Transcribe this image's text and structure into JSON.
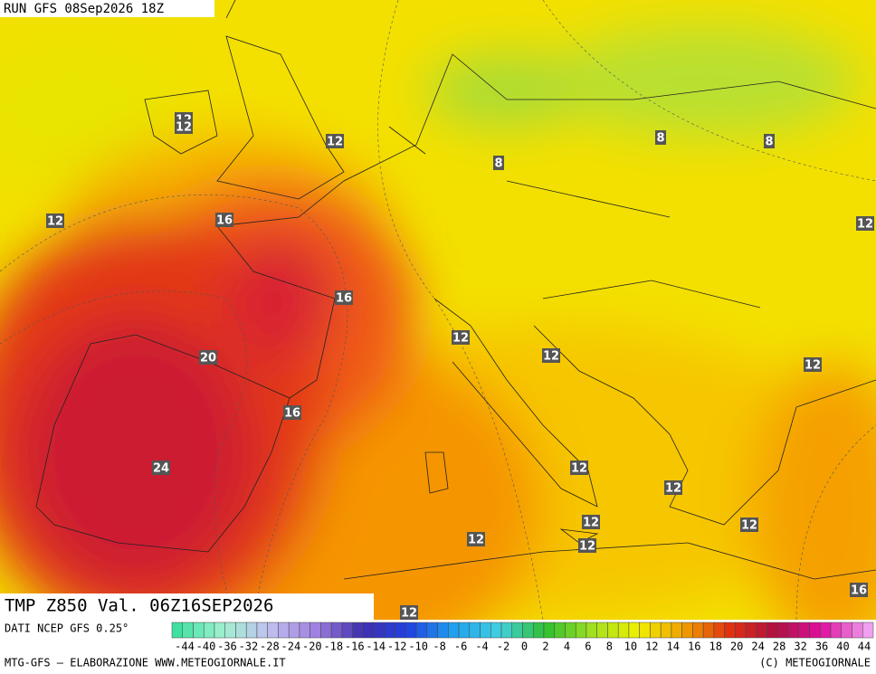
{
  "header": {
    "run": "RUN GFS 08Sep2026 18Z"
  },
  "map": {
    "field": "TMP  Z850  Val. 06Z16SEP2026",
    "contour_labels": [
      "12",
      "12",
      "12",
      "8",
      "8",
      "8",
      "12",
      "16",
      "12",
      "16",
      "12",
      "20",
      "12",
      "12",
      "16",
      "24",
      "12",
      "12",
      "12",
      "12",
      "12",
      "12",
      "16",
      "12"
    ]
  },
  "legend": {
    "source": "DATI NCEP GFS 0.25°",
    "scale": [
      -44,
      -40,
      -36,
      -32,
      -28,
      -24,
      -20,
      -18,
      -16,
      -14,
      -12,
      -10,
      -8,
      -6,
      -4,
      -2,
      0,
      2,
      4,
      6,
      8,
      10,
      12,
      14,
      16,
      18,
      20,
      24,
      28,
      32,
      36,
      40,
      44
    ]
  },
  "footer": {
    "left": "MTG-GFS — ELABORAZIONE WWW.METEOGIORNALE.IT",
    "right": "(C) METEOGIORNALE"
  }
}
